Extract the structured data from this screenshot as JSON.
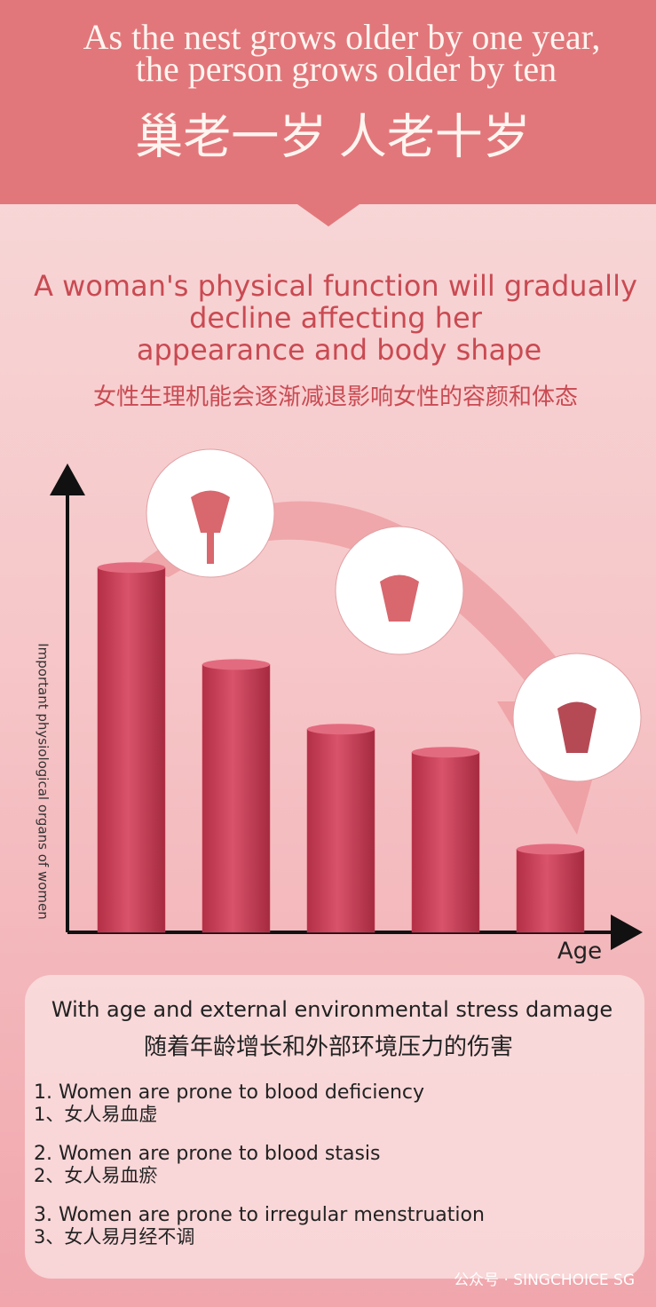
{
  "header": {
    "title_en": [
      "As the nest grows older by one year,",
      "the person grows older by ten"
    ],
    "title_cn": "巢老一岁 人老十岁"
  },
  "intro": {
    "lines_en": [
      "A woman's physical function will gradually",
      "decline affecting her",
      "appearance and body shape"
    ],
    "line_cn": "女性生理机能会逐渐减退影响女性的容颜和体态"
  },
  "chart_data": {
    "type": "bar",
    "ylabel": "Important physiological organs of women",
    "xlabel": "Age",
    "categories": [
      null,
      null,
      null,
      null,
      null
    ],
    "values": [
      79,
      58,
      44,
      39,
      18
    ],
    "ylim": [
      0,
      100
    ],
    "color": "#c73e55"
  },
  "info": {
    "heading_en": "With age and external environmental stress damage",
    "heading_cn": "随着年龄增长和外部环境压力的伤害",
    "items": [
      {
        "en": "1. Women are prone to blood deficiency",
        "cn": "1、女人易血虚"
      },
      {
        "en": "2. Women are prone to blood stasis",
        "cn": "2、女人易血瘀"
      },
      {
        "en": "3. Women are prone to irregular menstruation",
        "cn": "3、女人易月经不调"
      }
    ]
  },
  "footer": {
    "watermark": "公众号 · SINGCHOICE SG"
  }
}
